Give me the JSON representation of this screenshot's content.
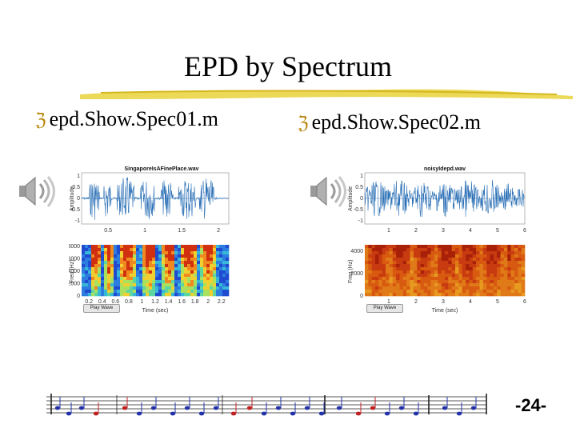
{
  "slide": {
    "title": "EPD by Spectrum",
    "page_number": "-24-"
  },
  "bullets": [
    {
      "text": "epd.Show.Spec01.m"
    },
    {
      "text": "epd.Show.Spec02.m"
    }
  ],
  "figures": [
    {
      "wave_title": "SingaporeIsAFinePlace.wav",
      "ylabel_top": "Amplitude",
      "ylabel_bottom": "Freq (Hz)",
      "xlabel": "Time (sec)",
      "button": "Play Wave",
      "wave_yticks": [
        "1",
        "0.5",
        "0",
        "-0.5",
        "-1"
      ],
      "wave_xticks": [
        "0.5",
        "1",
        "1.5",
        "2"
      ],
      "spec_yticks": [
        "8000",
        "6000",
        "4000",
        "2000",
        "0"
      ],
      "spec_xticks": [
        "0.2",
        "0.4",
        "0.6",
        "0.8",
        "1",
        "1.2",
        "1.4",
        "1.6",
        "1.8",
        "2",
        "2.2"
      ]
    },
    {
      "wave_title": "noisyIdepd.wav",
      "ylabel_top": "Amplitude",
      "ylabel_bottom": "Freq (Hz)",
      "xlabel": "Time (sec)",
      "button": "Play Wave",
      "wave_yticks": [
        "1",
        "0.5",
        "0",
        "-0.5",
        "-1"
      ],
      "wave_xticks": [
        "1",
        "2",
        "3",
        "4",
        "5",
        "6"
      ],
      "spec_yticks": [
        "4000",
        "2000",
        "0"
      ],
      "spec_xticks": [
        "1",
        "2",
        "3",
        "4",
        "5",
        "6"
      ]
    }
  ],
  "colors": {
    "bullet_marker": "#b8860b",
    "underline": "#e8d23a",
    "waveform": "#2a6fb5"
  },
  "icons": [
    "speaker-icon",
    "music-staff-decoration"
  ]
}
